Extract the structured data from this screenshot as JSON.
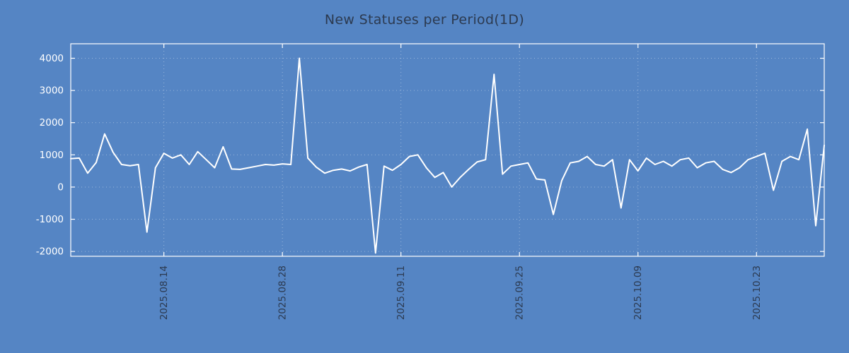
{
  "chart_data": {
    "type": "line",
    "title": "New Statuses per Period(1D)",
    "xlabel": "",
    "ylabel": "",
    "legend": "none",
    "grid": "dotted",
    "background_color": "#5585c4",
    "line_color": "#ffffff",
    "title_color": "#2c3a50",
    "y_label_color": "#ffffff",
    "x_label_color": "#2c3a50",
    "ylim": [
      -2150,
      4450
    ],
    "y_ticks": [
      -2000,
      -1000,
      0,
      1000,
      2000,
      3000,
      4000
    ],
    "x_tick_labels": [
      "2025.08.14",
      "2025.08.28",
      "2025.09.11",
      "2025.09.25",
      "2025.10.09",
      "2025.10.23"
    ],
    "x_tick_indices": [
      11,
      25,
      39,
      53,
      67,
      81
    ],
    "values": [
      880,
      900,
      430,
      760,
      1650,
      1080,
      700,
      660,
      700,
      -1400,
      600,
      1050,
      900,
      1000,
      700,
      1100,
      850,
      600,
      1250,
      560,
      550,
      600,
      650,
      700,
      680,
      720,
      700,
      4000,
      900,
      620,
      430,
      520,
      560,
      500,
      620,
      700,
      -2050,
      650,
      520,
      700,
      950,
      1000,
      600,
      300,
      450,
      0,
      300,
      550,
      780,
      850,
      3500,
      400,
      650,
      700,
      750,
      250,
      220,
      -850,
      200,
      750,
      800,
      950,
      700,
      650,
      850,
      -650,
      850,
      500,
      900,
      700,
      800,
      650,
      850,
      900,
      600,
      750,
      800,
      550,
      450,
      600,
      850,
      950,
      1050,
      -100,
      800,
      950,
      850,
      1800,
      -1200,
      1300
    ]
  }
}
